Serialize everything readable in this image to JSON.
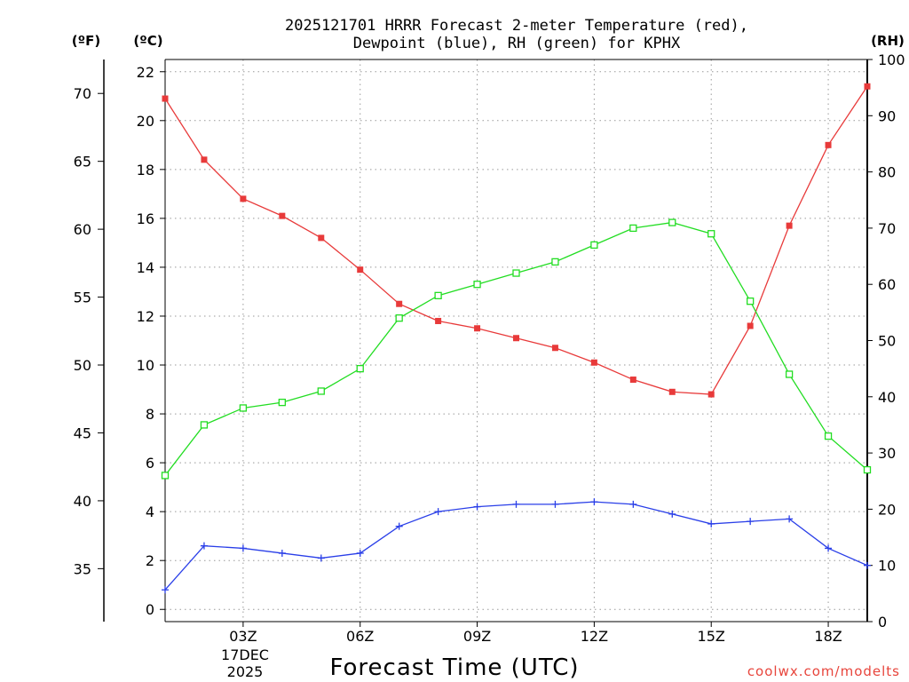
{
  "chart_data": {
    "type": "line",
    "title_line1": "2025121701 HRRR Forecast 2-meter Temperature (red),",
    "title_line2": "Dewpoint (blue), RH (green) for KPHX",
    "xlabel": "Forecast Time (UTC)",
    "credit": "coolwx.com/modelts",
    "date_label_1": "17DEC",
    "date_label_2": "2025",
    "units": {
      "fahrenheit": "(ºF)",
      "celsius": "(ºC)",
      "rh": "(RH)"
    },
    "x": [
      1,
      2,
      3,
      4,
      5,
      6,
      7,
      8,
      9,
      10,
      11,
      12,
      13,
      14,
      15,
      16,
      17,
      18,
      19
    ],
    "xlim": [
      1,
      19
    ],
    "x_ticks": [
      {
        "x": 3,
        "label": "03Z"
      },
      {
        "x": 6,
        "label": "06Z"
      },
      {
        "x": 9,
        "label": "09Z"
      },
      {
        "x": 12,
        "label": "12Z"
      },
      {
        "x": 15,
        "label": "15Z"
      },
      {
        "x": 18,
        "label": "18Z"
      }
    ],
    "ylim_celsius": [
      -0.5,
      22.5
    ],
    "celsius_ticks": [
      0,
      2,
      4,
      6,
      8,
      10,
      12,
      14,
      16,
      18,
      20,
      22
    ],
    "fahrenheit_ticks": [
      35,
      40,
      45,
      50,
      55,
      60,
      65,
      70
    ],
    "ylim_rh": [
      0,
      100
    ],
    "rh_ticks": [
      0,
      10,
      20,
      30,
      40,
      50,
      60,
      70,
      80,
      90,
      100
    ],
    "series": [
      {
        "name": "Temperature",
        "color": "#e83a3a",
        "axis": "celsius",
        "marker": "filled-square",
        "values": [
          20.9,
          18.4,
          16.8,
          16.1,
          15.2,
          13.9,
          12.5,
          11.8,
          11.5,
          11.1,
          10.7,
          10.1,
          9.4,
          8.9,
          8.8,
          11.6,
          15.7,
          19.0,
          21.4
        ]
      },
      {
        "name": "Dewpoint",
        "color": "#2a3fe8",
        "axis": "celsius",
        "marker": "plus",
        "values": [
          0.8,
          2.6,
          2.5,
          2.3,
          2.1,
          2.3,
          3.4,
          4.0,
          4.2,
          4.3,
          4.3,
          4.4,
          4.3,
          3.9,
          3.5,
          3.6,
          3.7,
          2.5,
          1.8
        ]
      },
      {
        "name": "RH",
        "color": "#22dd22",
        "axis": "rh",
        "marker": "open-square",
        "values": [
          26,
          35,
          38,
          39,
          41,
          45,
          54,
          58,
          60,
          62,
          64,
          67,
          70,
          71,
          69,
          57,
          44,
          33,
          27
        ]
      }
    ]
  }
}
